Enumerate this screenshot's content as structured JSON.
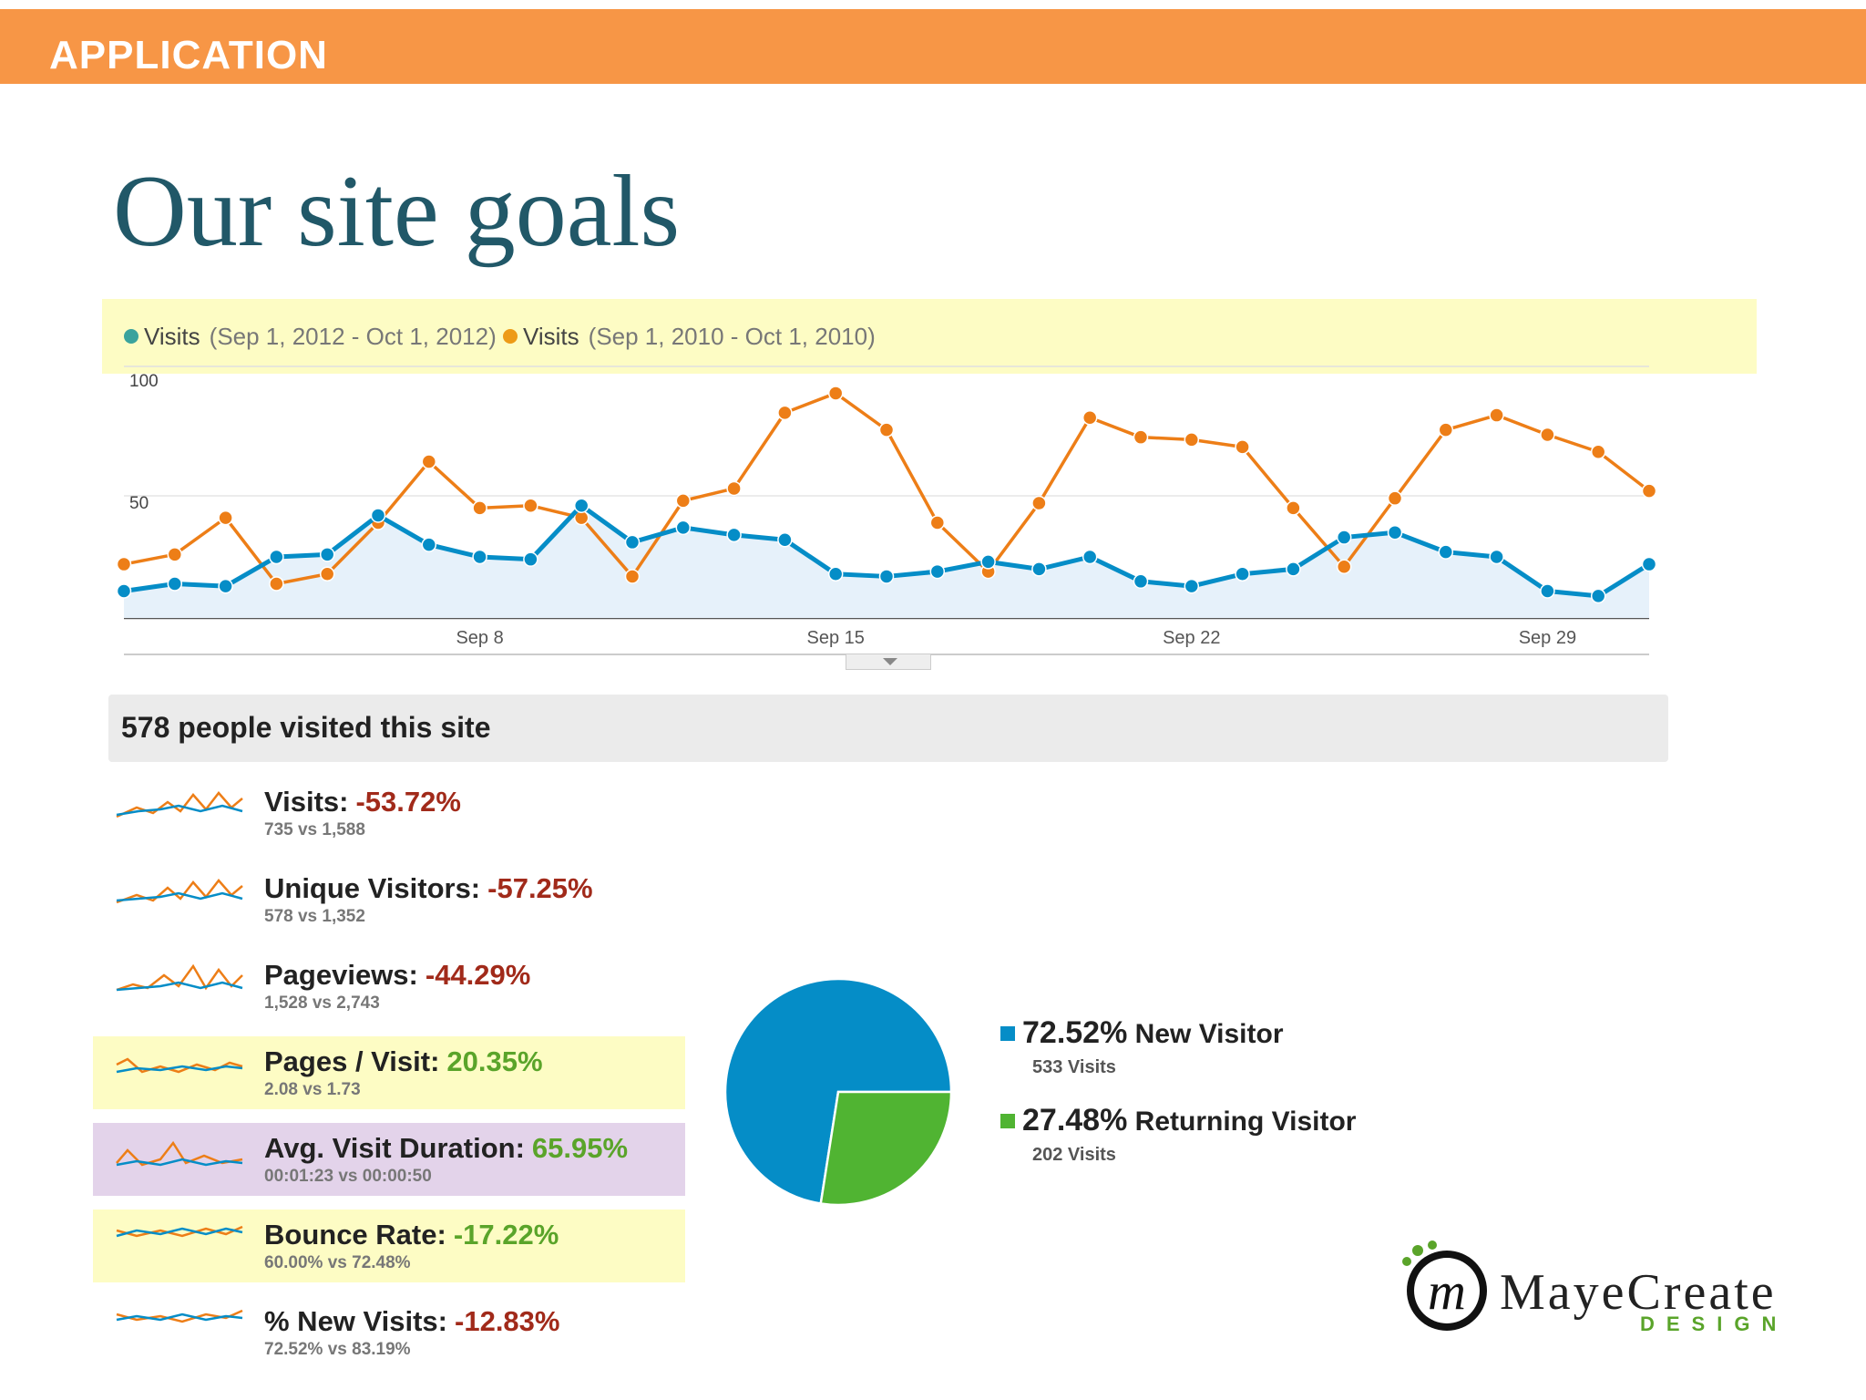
{
  "header": {
    "section": "APPLICATION"
  },
  "slide": {
    "title": "Our site goals"
  },
  "colors": {
    "accent_bar": "#f79646",
    "title": "#215868",
    "series_2012": "#058dc7",
    "series_2010": "#ed7e17",
    "new_visitor": "#058dc7",
    "returning_visitor": "#50b432",
    "negative": "#a12a1a",
    "positive": "#5aa42a"
  },
  "legend": [
    {
      "label": "Visits",
      "range": "(Sep 1, 2012 - Oct 1, 2012)"
    },
    {
      "label": "Visits",
      "range": "(Sep 1, 2010 - Oct 1, 2010)"
    }
  ],
  "summary": {
    "text": "578 people visited this site"
  },
  "metrics": [
    {
      "label": "Visits:",
      "value": "-53.72%",
      "compare": "735 vs 1,588",
      "trend": "negative",
      "highlight": "none"
    },
    {
      "label": "Unique Visitors:",
      "value": "-57.25%",
      "compare": "578 vs 1,352",
      "trend": "negative",
      "highlight": "none"
    },
    {
      "label": "Pageviews:",
      "value": "-44.29%",
      "compare": "1,528 vs 2,743",
      "trend": "negative",
      "highlight": "none"
    },
    {
      "label": "Pages / Visit:",
      "value": "20.35%",
      "compare": "2.08 vs 1.73",
      "trend": "positive",
      "highlight": "yellow"
    },
    {
      "label": "Avg. Visit Duration:",
      "value": "65.95%",
      "compare": "00:01:23 vs 00:00:50",
      "trend": "positive",
      "highlight": "purple"
    },
    {
      "label": "Bounce Rate:",
      "value": "-17.22%",
      "compare": "60.00% vs 72.48%",
      "trend": "positive",
      "highlight": "yellow"
    },
    {
      "label": "% New Visits:",
      "value": "-12.83%",
      "compare": "72.52% vs 83.19%",
      "trend": "negative",
      "highlight": "none"
    }
  ],
  "logo": {
    "name": "MayeCreate",
    "tagline": "DESIGN",
    "monogram": "m"
  },
  "chart_data": [
    {
      "type": "line",
      "x_ticks": [
        "Sep 8",
        "Sep 15",
        "Sep 22",
        "Sep 29"
      ],
      "y_ticks": [
        "100",
        "50"
      ],
      "ylim": [
        0,
        100
      ],
      "grid": true,
      "legend_position": "top-left",
      "series": [
        {
          "name": "Visits",
          "values": [
            11,
            14,
            13,
            25,
            26,
            42,
            30,
            25,
            24,
            46,
            31,
            37,
            34,
            32,
            18,
            17,
            19,
            23,
            20,
            25,
            15,
            13,
            18,
            20,
            33,
            35,
            27,
            25,
            11,
            9,
            22
          ]
        },
        {
          "name": "Visits",
          "values": [
            22,
            26,
            41,
            14,
            18,
            39,
            64,
            45,
            46,
            41,
            17,
            48,
            53,
            84,
            92,
            77,
            39,
            19,
            47,
            82,
            74,
            73,
            70,
            45,
            21,
            49,
            77,
            83,
            75,
            68,
            52
          ]
        }
      ]
    },
    {
      "type": "pie",
      "slices": [
        {
          "label": "New Visitor",
          "percent": "72.52%",
          "value": 72.52,
          "visits": "533 Visits"
        },
        {
          "label": "Returning Visitor",
          "percent": "27.48%",
          "value": 27.48,
          "visits": "202 Visits"
        }
      ]
    }
  ]
}
